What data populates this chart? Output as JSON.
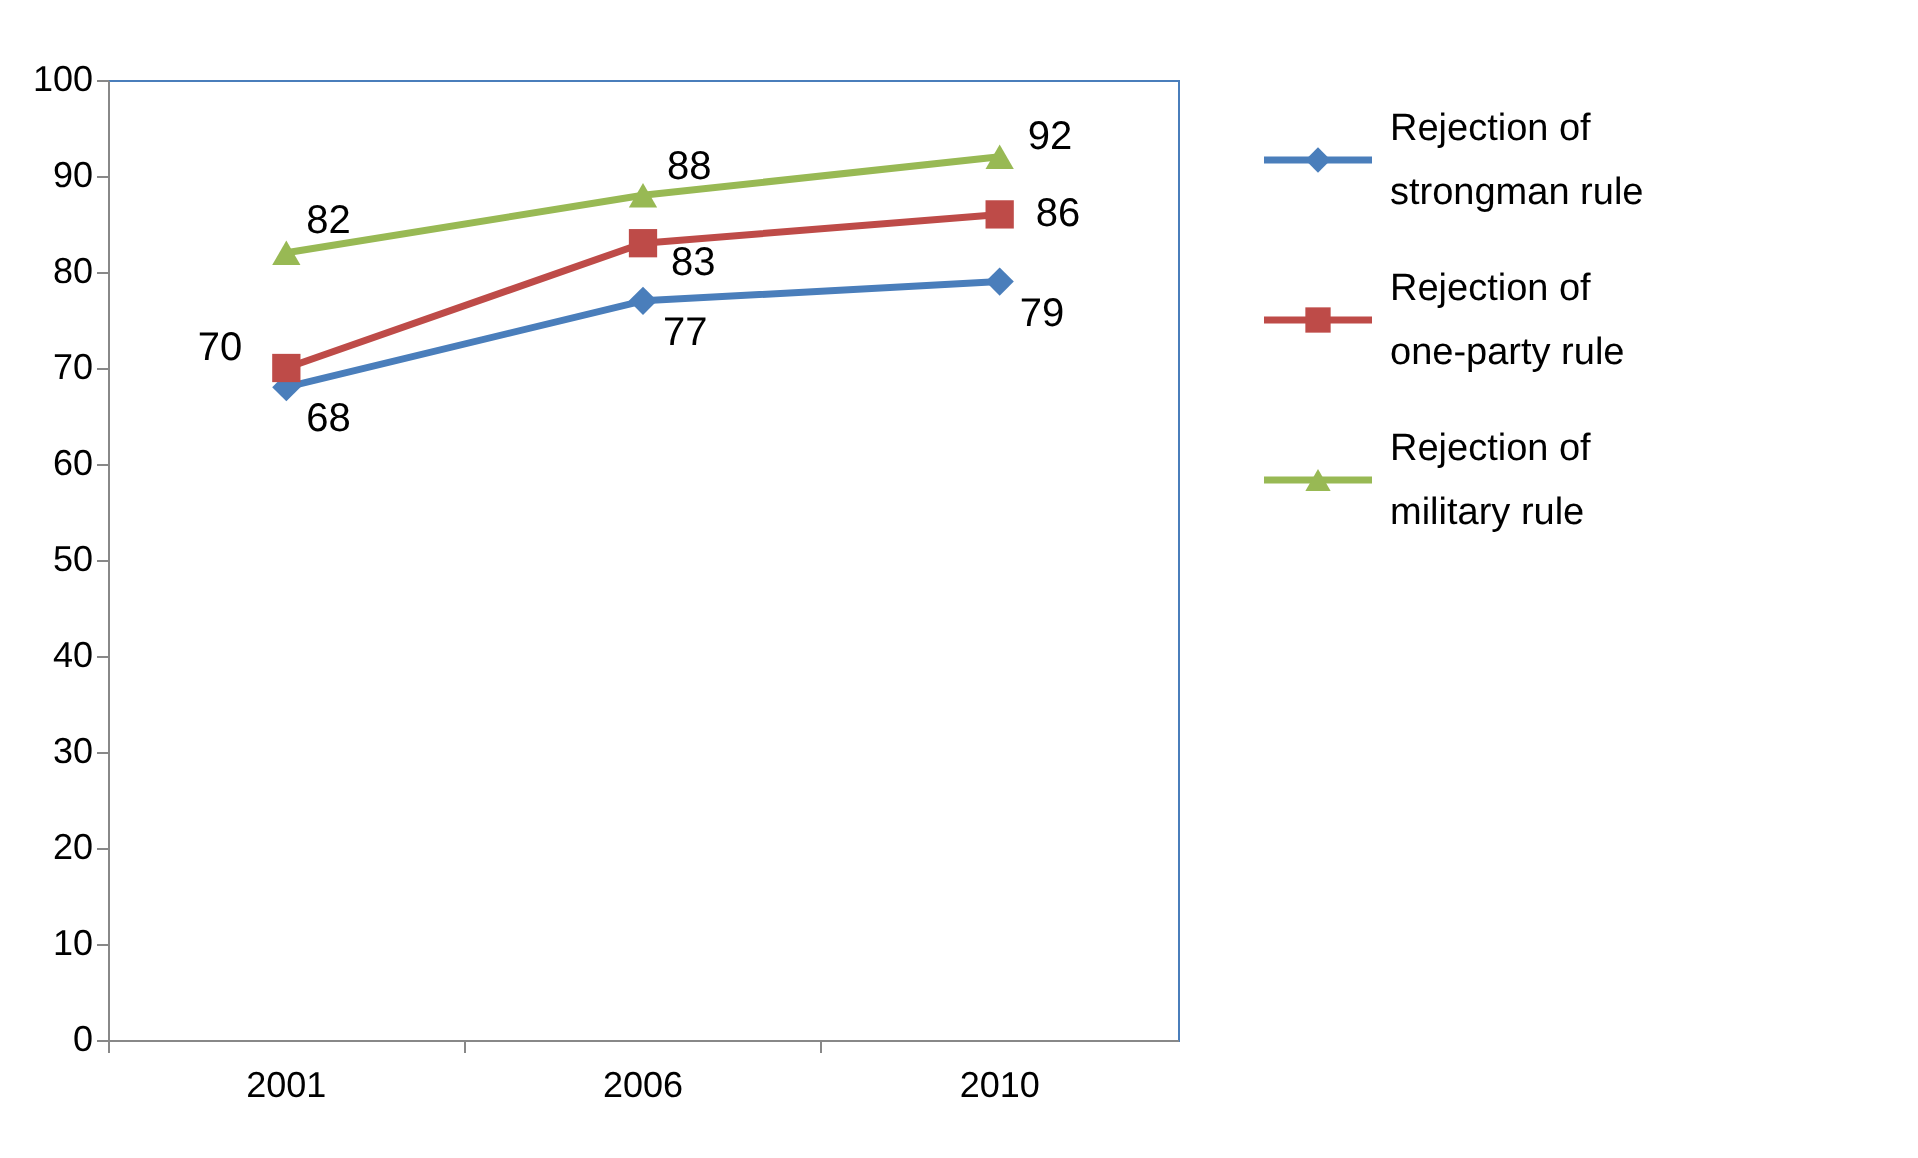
{
  "chart_data": {
    "type": "line",
    "categories": [
      "2001",
      "2006",
      "2010"
    ],
    "series": [
      {
        "name": "Rejection of strongman rule",
        "color": "#4a7ebb",
        "marker": "diamond",
        "values": [
          68,
          77,
          79
        ]
      },
      {
        "name": "Rejection of one-party rule",
        "color": "#be4b48",
        "marker": "square",
        "values": [
          70,
          83,
          86
        ]
      },
      {
        "name": "Rejection of military rule",
        "color": "#98b954",
        "marker": "triangle",
        "values": [
          82,
          88,
          92
        ]
      }
    ],
    "ylim": [
      0,
      100
    ],
    "yticks": [
      0,
      10,
      20,
      30,
      40,
      50,
      60,
      70,
      80,
      90,
      100
    ],
    "data_labels": true,
    "grid": false,
    "legend": "right",
    "line_style": "solid"
  }
}
